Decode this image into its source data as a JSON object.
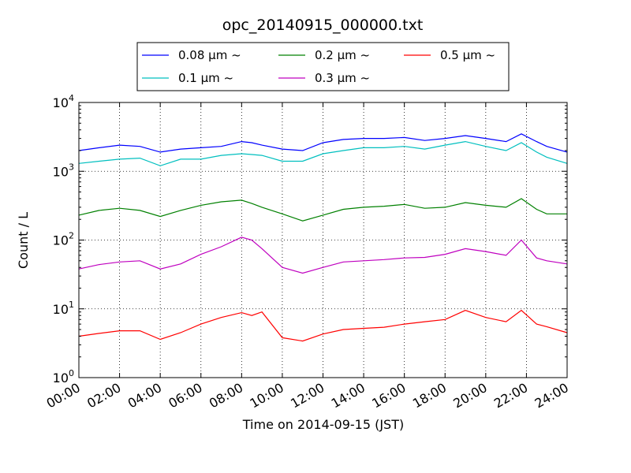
{
  "chart_data": {
    "type": "line",
    "title": "opc_20140915_000000.txt",
    "xlabel": "Time on 2014-09-15 (JST)",
    "ylabel": "Count / L",
    "xlim": [
      "00:00",
      "24:00"
    ],
    "ylim": [
      1,
      10000
    ],
    "yscale": "log",
    "grid": true,
    "legend_position": "top-center",
    "x_ticks": [
      "00:00",
      "02:00",
      "04:00",
      "06:00",
      "08:00",
      "10:00",
      "12:00",
      "14:00",
      "16:00",
      "18:00",
      "20:00",
      "22:00",
      "24:00"
    ],
    "y_ticks": [
      {
        "base": "10",
        "exp": "0"
      },
      {
        "base": "10",
        "exp": "1"
      },
      {
        "base": "10",
        "exp": "2"
      },
      {
        "base": "10",
        "exp": "3"
      },
      {
        "base": "10",
        "exp": "4"
      }
    ],
    "x": [
      "00:00",
      "01:00",
      "02:00",
      "03:00",
      "04:00",
      "05:00",
      "06:00",
      "07:00",
      "08:00",
      "08:30",
      "09:00",
      "10:00",
      "11:00",
      "12:00",
      "13:00",
      "14:00",
      "15:00",
      "16:00",
      "17:00",
      "18:00",
      "19:00",
      "20:00",
      "21:00",
      "21:45",
      "22:30",
      "23:00",
      "24:00"
    ],
    "series": [
      {
        "name": "0.08 μm ~",
        "color": "#0000ff",
        "values": [
          2000,
          2200,
          2400,
          2300,
          1900,
          2100,
          2200,
          2300,
          2700,
          2600,
          2400,
          2100,
          2000,
          2600,
          2900,
          3000,
          3000,
          3100,
          2800,
          3000,
          3300,
          3000,
          2700,
          3500,
          2700,
          2300,
          1900
        ]
      },
      {
        "name": "0.1 μm ~",
        "color": "#00bfbf",
        "values": [
          1300,
          1400,
          1500,
          1550,
          1200,
          1500,
          1500,
          1700,
          1800,
          1750,
          1700,
          1400,
          1400,
          1800,
          2000,
          2200,
          2200,
          2300,
          2100,
          2400,
          2700,
          2300,
          2000,
          2600,
          1900,
          1600,
          1300
        ]
      },
      {
        "name": "0.2 μm ~",
        "color": "#008000",
        "values": [
          230,
          270,
          290,
          270,
          220,
          270,
          320,
          360,
          380,
          340,
          300,
          240,
          190,
          230,
          280,
          300,
          310,
          330,
          290,
          300,
          350,
          320,
          300,
          400,
          280,
          240,
          240
        ]
      },
      {
        "name": "0.3 μm ~",
        "color": "#bf00bf",
        "values": [
          38,
          44,
          48,
          50,
          38,
          45,
          62,
          80,
          110,
          100,
          75,
          40,
          33,
          40,
          48,
          50,
          52,
          55,
          56,
          62,
          75,
          68,
          60,
          100,
          55,
          50,
          45
        ]
      },
      {
        "name": "0.5 μm ~",
        "color": "#ff0000",
        "values": [
          4,
          4.4,
          4.8,
          4.8,
          3.6,
          4.5,
          6.0,
          7.5,
          8.8,
          8.0,
          9.0,
          3.8,
          3.4,
          4.3,
          5.0,
          5.2,
          5.4,
          6.0,
          6.5,
          7.0,
          9.5,
          7.5,
          6.5,
          9.5,
          6.0,
          5.5,
          4.5
        ]
      }
    ]
  }
}
